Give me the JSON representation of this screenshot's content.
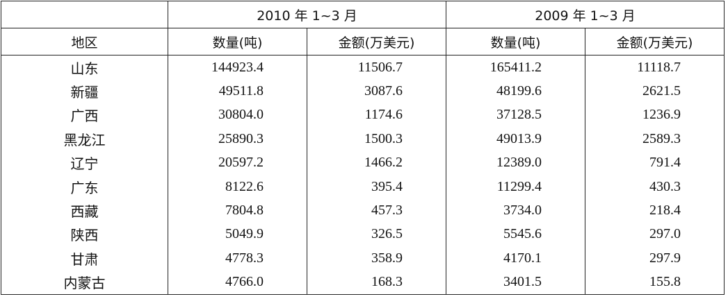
{
  "table": {
    "group_headers": [
      "2010 年 1~3 月",
      "2009 年 1~3 月"
    ],
    "column_headers": [
      "地区",
      "数量(吨)",
      "金额(万美元)",
      "数量(吨)",
      "金额(万美元)"
    ],
    "rows": [
      [
        "山东",
        "144923.4",
        "11506.7",
        "165411.2",
        "11118.7"
      ],
      [
        "新疆",
        "49511.8",
        "3087.6",
        "48199.6",
        "2621.5"
      ],
      [
        "广西",
        "30804.0",
        "1174.6",
        "37128.5",
        "1236.9"
      ],
      [
        "黑龙江",
        "25890.3",
        "1500.3",
        "49013.9",
        "2589.3"
      ],
      [
        "辽宁",
        "20597.2",
        "1466.2",
        "12389.0",
        "791.4"
      ],
      [
        "广东",
        "8122.6",
        "395.4",
        "11299.4",
        "430.3"
      ],
      [
        "西藏",
        "7804.8",
        "457.3",
        "3734.0",
        "218.4"
      ],
      [
        "陕西",
        "5049.9",
        "326.5",
        "5545.6",
        "297.0"
      ],
      [
        "甘肃",
        "4778.3",
        "358.9",
        "4170.1",
        "297.9"
      ],
      [
        "内蒙古",
        "4766.0",
        "168.3",
        "3401.5",
        "155.8"
      ]
    ]
  }
}
